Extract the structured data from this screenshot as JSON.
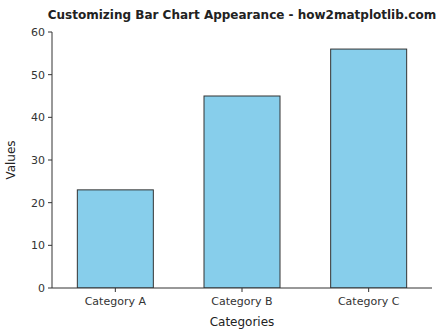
{
  "chart_data": {
    "type": "bar",
    "title": "Customizing Bar Chart Appearance - how2matplotlib.com",
    "xlabel": "Categories",
    "ylabel": "Values",
    "categories": [
      "Category A",
      "Category B",
      "Category C"
    ],
    "values": [
      23,
      45,
      56
    ],
    "color": "#87CEEB",
    "ylim": [
      0,
      60
    ],
    "yticks": [
      0,
      10,
      20,
      30,
      40,
      50,
      60
    ],
    "grid": false
  }
}
